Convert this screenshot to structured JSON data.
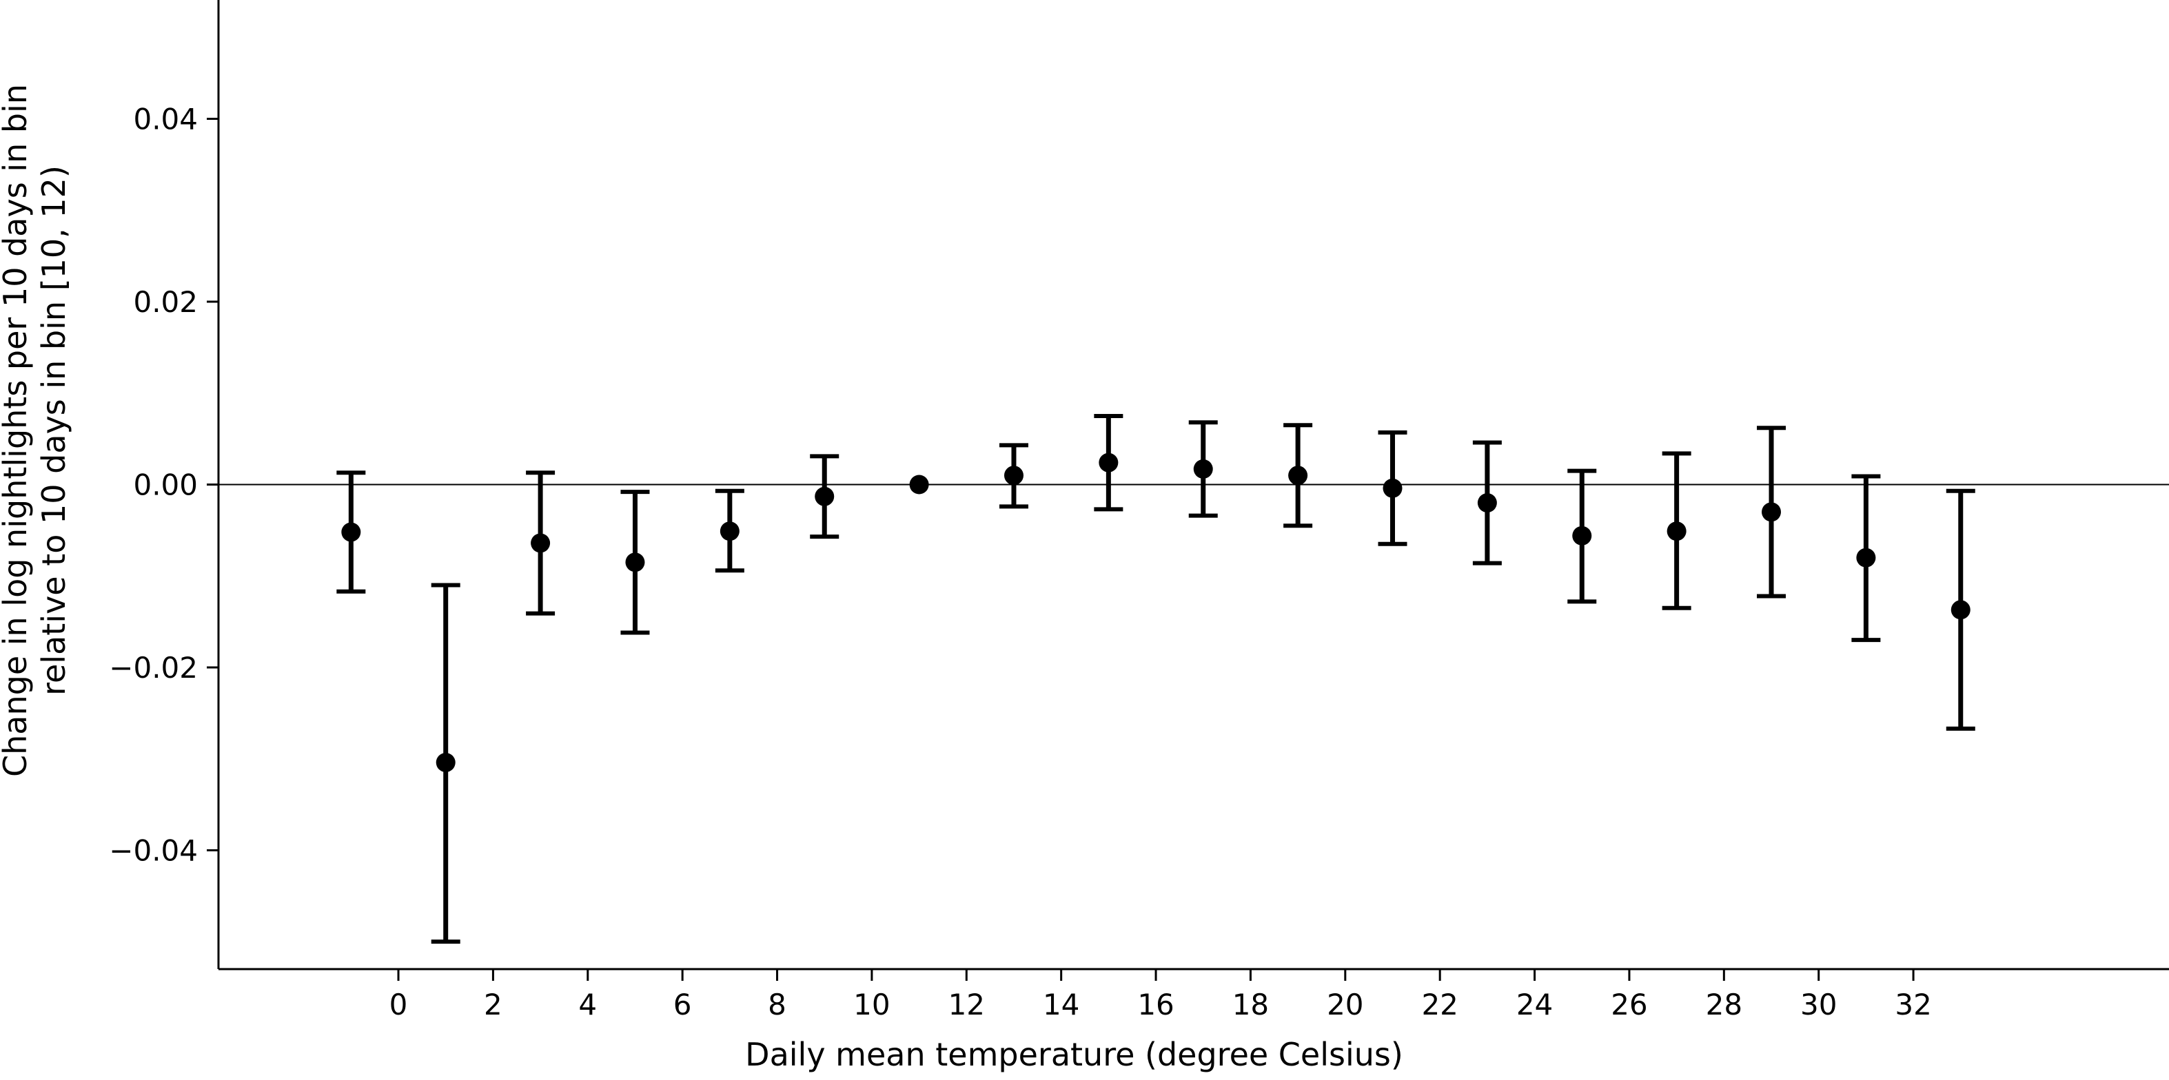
{
  "chart_data": {
    "type": "scatter",
    "title": "",
    "xlabel": "Daily mean temperature (degree Celsius)",
    "ylabel_lines": [
      "Change in log nightlights per 10 days in bin",
      "relative to 10 days in bin [10, 12)"
    ],
    "xlim": [
      -3.8,
      37.4
    ],
    "ylim": [
      -0.053,
      0.053
    ],
    "xticks": [
      0,
      2,
      4,
      6,
      8,
      10,
      12,
      14,
      16,
      18,
      20,
      22,
      24,
      26,
      28,
      30,
      32
    ],
    "xtick_labels": [
      "0",
      "2",
      "4",
      "6",
      "8",
      "10",
      "12",
      "14",
      "16",
      "18",
      "20",
      "22",
      "24",
      "26",
      "28",
      "30",
      "32"
    ],
    "yticks": [
      -0.04,
      -0.02,
      0.0,
      0.02,
      0.04
    ],
    "ytick_labels": [
      "−0.04",
      "−0.02",
      "0.00",
      "0.02",
      "0.04"
    ],
    "reference_line_y": 0,
    "grid": false,
    "legend": "none",
    "color": "#000000",
    "series": [
      {
        "points": [
          {
            "x": -1,
            "y": -0.0052,
            "lo": -0.0117,
            "hi": 0.0013
          },
          {
            "x": 1,
            "y": -0.0304,
            "lo": -0.05,
            "hi": -0.011
          },
          {
            "x": 3,
            "y": -0.0064,
            "lo": -0.0141,
            "hi": 0.0013
          },
          {
            "x": 5,
            "y": -0.0085,
            "lo": -0.0162,
            "hi": -0.0008
          },
          {
            "x": 7,
            "y": -0.0051,
            "lo": -0.0094,
            "hi": -0.0007
          },
          {
            "x": 9,
            "y": -0.0013,
            "lo": -0.0057,
            "hi": 0.0031
          },
          {
            "x": 11,
            "y": 0.0,
            "lo": 0.0,
            "hi": 0.0
          },
          {
            "x": 13,
            "y": 0.001,
            "lo": -0.0024,
            "hi": 0.0043
          },
          {
            "x": 15,
            "y": 0.0024,
            "lo": -0.0027,
            "hi": 0.0075
          },
          {
            "x": 17,
            "y": 0.0017,
            "lo": -0.0034,
            "hi": 0.0068
          },
          {
            "x": 19,
            "y": 0.001,
            "lo": -0.0045,
            "hi": 0.0065
          },
          {
            "x": 21,
            "y": -0.0004,
            "lo": -0.0065,
            "hi": 0.0057
          },
          {
            "x": 23,
            "y": -0.002,
            "lo": -0.0086,
            "hi": 0.0046
          },
          {
            "x": 25,
            "y": -0.0056,
            "lo": -0.0128,
            "hi": 0.0015
          },
          {
            "x": 27,
            "y": -0.0051,
            "lo": -0.0135,
            "hi": 0.0034
          },
          {
            "x": 29,
            "y": -0.003,
            "lo": -0.0122,
            "hi": 0.0062
          },
          {
            "x": 31,
            "y": -0.008,
            "lo": -0.017,
            "hi": 0.0009
          },
          {
            "x": 33,
            "y": -0.0137,
            "lo": -0.0267,
            "hi": -0.0007
          }
        ]
      }
    ]
  }
}
